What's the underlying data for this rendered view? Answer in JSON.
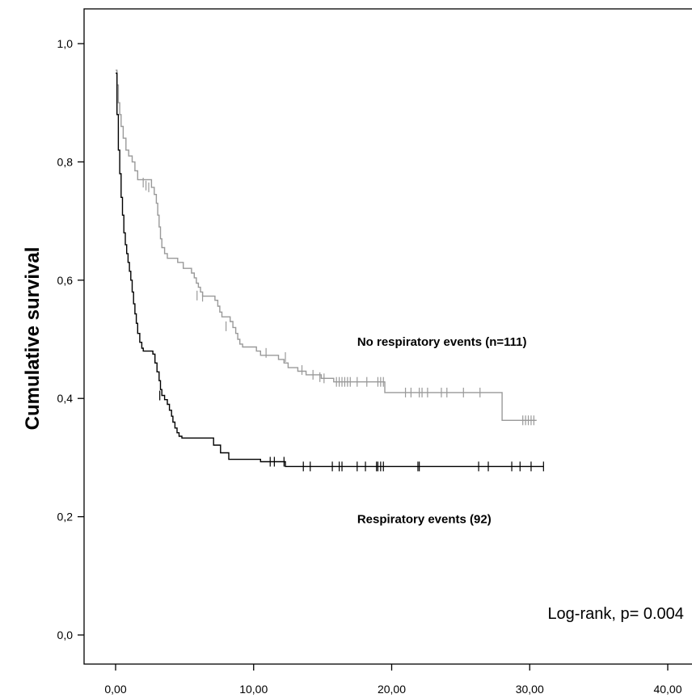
{
  "chart_data": {
    "type": "line",
    "subtype": "kaplan-meier",
    "ylabel": "Cumulative survival",
    "xlabel": "",
    "xlim": [
      0,
      40
    ],
    "ylim": [
      0,
      1.0
    ],
    "xticks": [
      0,
      10,
      20,
      30,
      40
    ],
    "xtick_labels": [
      "0,00",
      "10,00",
      "20,00",
      "30,00",
      "40,00"
    ],
    "yticks": [
      0,
      0.2,
      0.4,
      0.6,
      0.8,
      1.0
    ],
    "ytick_labels": [
      "0,0",
      "0,2",
      "0,4",
      "0,6",
      "0,8",
      "1,0"
    ],
    "grid": false,
    "annotations": [
      {
        "text": "Log-rank, p= 0.004",
        "x": 31.3,
        "y": 0.027
      }
    ],
    "series": [
      {
        "name": "No respiratory events (n=111)",
        "label_anchor": {
          "x": 17.5,
          "y": 0.489
        },
        "color": "#999999",
        "steps": [
          [
            0,
            0.955
          ],
          [
            0.1,
            0.93
          ],
          [
            0.2,
            0.9
          ],
          [
            0.3,
            0.88
          ],
          [
            0.4,
            0.86
          ],
          [
            0.55,
            0.84
          ],
          [
            0.75,
            0.82
          ],
          [
            0.95,
            0.81
          ],
          [
            1.2,
            0.8
          ],
          [
            1.4,
            0.785
          ],
          [
            1.6,
            0.77
          ],
          [
            2.6,
            0.757
          ],
          [
            2.8,
            0.745
          ],
          [
            2.95,
            0.73
          ],
          [
            3.05,
            0.71
          ],
          [
            3.15,
            0.69
          ],
          [
            3.25,
            0.67
          ],
          [
            3.35,
            0.655
          ],
          [
            3.55,
            0.645
          ],
          [
            3.75,
            0.637
          ],
          [
            4.5,
            0.63
          ],
          [
            4.9,
            0.62
          ],
          [
            5.5,
            0.612
          ],
          [
            5.7,
            0.604
          ],
          [
            5.85,
            0.595
          ],
          [
            6.0,
            0.588
          ],
          [
            6.15,
            0.58
          ],
          [
            6.3,
            0.573
          ],
          [
            7.2,
            0.566
          ],
          [
            7.4,
            0.556
          ],
          [
            7.55,
            0.546
          ],
          [
            7.7,
            0.538
          ],
          [
            8.3,
            0.53
          ],
          [
            8.5,
            0.52
          ],
          [
            8.7,
            0.51
          ],
          [
            8.85,
            0.5
          ],
          [
            9.0,
            0.492
          ],
          [
            9.2,
            0.487
          ],
          [
            10.2,
            0.48
          ],
          [
            10.5,
            0.473
          ],
          [
            11.8,
            0.466
          ],
          [
            12.2,
            0.46
          ],
          [
            12.5,
            0.452
          ],
          [
            13.2,
            0.446
          ],
          [
            13.8,
            0.44
          ],
          [
            14.9,
            0.434
          ],
          [
            15.8,
            0.428
          ],
          [
            19.5,
            0.41
          ],
          [
            28.0,
            0.363
          ],
          [
            30.5,
            0.363
          ]
        ],
        "censors": [
          [
            2.0,
            0.765
          ],
          [
            2.2,
            0.76
          ],
          [
            2.4,
            0.757
          ],
          [
            5.9,
            0.574
          ],
          [
            6.3,
            0.572
          ],
          [
            8.0,
            0.522
          ],
          [
            10.9,
            0.477
          ],
          [
            12.3,
            0.47
          ],
          [
            13.5,
            0.448
          ],
          [
            14.3,
            0.44
          ],
          [
            14.8,
            0.436
          ],
          [
            15.1,
            0.434
          ],
          [
            16.0,
            0.428
          ],
          [
            16.2,
            0.428
          ],
          [
            16.4,
            0.428
          ],
          [
            16.6,
            0.428
          ],
          [
            16.8,
            0.428
          ],
          [
            17.0,
            0.428
          ],
          [
            17.5,
            0.428
          ],
          [
            18.2,
            0.428
          ],
          [
            19.0,
            0.428
          ],
          [
            19.2,
            0.428
          ],
          [
            19.4,
            0.428
          ],
          [
            21.0,
            0.41
          ],
          [
            21.4,
            0.41
          ],
          [
            22.0,
            0.41
          ],
          [
            22.2,
            0.41
          ],
          [
            22.6,
            0.41
          ],
          [
            23.6,
            0.41
          ],
          [
            24.0,
            0.41
          ],
          [
            25.2,
            0.41
          ],
          [
            26.4,
            0.41
          ],
          [
            29.5,
            0.363
          ],
          [
            29.7,
            0.363
          ],
          [
            29.9,
            0.363
          ],
          [
            30.1,
            0.363
          ],
          [
            30.3,
            0.363
          ]
        ]
      },
      {
        "name": "Respiratory events (92)",
        "label_anchor": {
          "x": 17.5,
          "y": 0.189
        },
        "color": "#000000",
        "steps": [
          [
            0,
            0.95
          ],
          [
            0.1,
            0.88
          ],
          [
            0.2,
            0.82
          ],
          [
            0.3,
            0.78
          ],
          [
            0.4,
            0.74
          ],
          [
            0.5,
            0.71
          ],
          [
            0.6,
            0.68
          ],
          [
            0.7,
            0.66
          ],
          [
            0.8,
            0.645
          ],
          [
            0.9,
            0.63
          ],
          [
            1.0,
            0.615
          ],
          [
            1.1,
            0.6
          ],
          [
            1.2,
            0.58
          ],
          [
            1.3,
            0.56
          ],
          [
            1.4,
            0.543
          ],
          [
            1.5,
            0.527
          ],
          [
            1.6,
            0.51
          ],
          [
            1.75,
            0.495
          ],
          [
            1.9,
            0.485
          ],
          [
            2.0,
            0.48
          ],
          [
            2.7,
            0.475
          ],
          [
            2.85,
            0.46
          ],
          [
            3.0,
            0.445
          ],
          [
            3.15,
            0.43
          ],
          [
            3.25,
            0.415
          ],
          [
            3.35,
            0.405
          ],
          [
            3.55,
            0.398
          ],
          [
            3.75,
            0.39
          ],
          [
            3.9,
            0.38
          ],
          [
            4.05,
            0.37
          ],
          [
            4.15,
            0.36
          ],
          [
            4.3,
            0.35
          ],
          [
            4.45,
            0.342
          ],
          [
            4.6,
            0.336
          ],
          [
            4.8,
            0.333
          ],
          [
            7.1,
            0.321
          ],
          [
            7.6,
            0.308
          ],
          [
            8.2,
            0.297
          ],
          [
            10.5,
            0.293
          ],
          [
            12.3,
            0.285
          ],
          [
            31.0,
            0.285
          ]
        ],
        "censors": [
          [
            3.2,
            0.405
          ],
          [
            11.2,
            0.293
          ],
          [
            11.5,
            0.293
          ],
          [
            12.2,
            0.293
          ],
          [
            13.6,
            0.285
          ],
          [
            14.1,
            0.285
          ],
          [
            15.7,
            0.285
          ],
          [
            16.2,
            0.285
          ],
          [
            16.4,
            0.285
          ],
          [
            17.5,
            0.285
          ],
          [
            18.1,
            0.285
          ],
          [
            18.9,
            0.285
          ],
          [
            19.0,
            0.285
          ],
          [
            19.2,
            0.285
          ],
          [
            19.4,
            0.285
          ],
          [
            21.9,
            0.285
          ],
          [
            22.0,
            0.285
          ],
          [
            26.3,
            0.285
          ],
          [
            27.0,
            0.285
          ],
          [
            28.7,
            0.285
          ],
          [
            29.3,
            0.285
          ],
          [
            30.1,
            0.285
          ],
          [
            31.0,
            0.285
          ]
        ]
      }
    ]
  }
}
